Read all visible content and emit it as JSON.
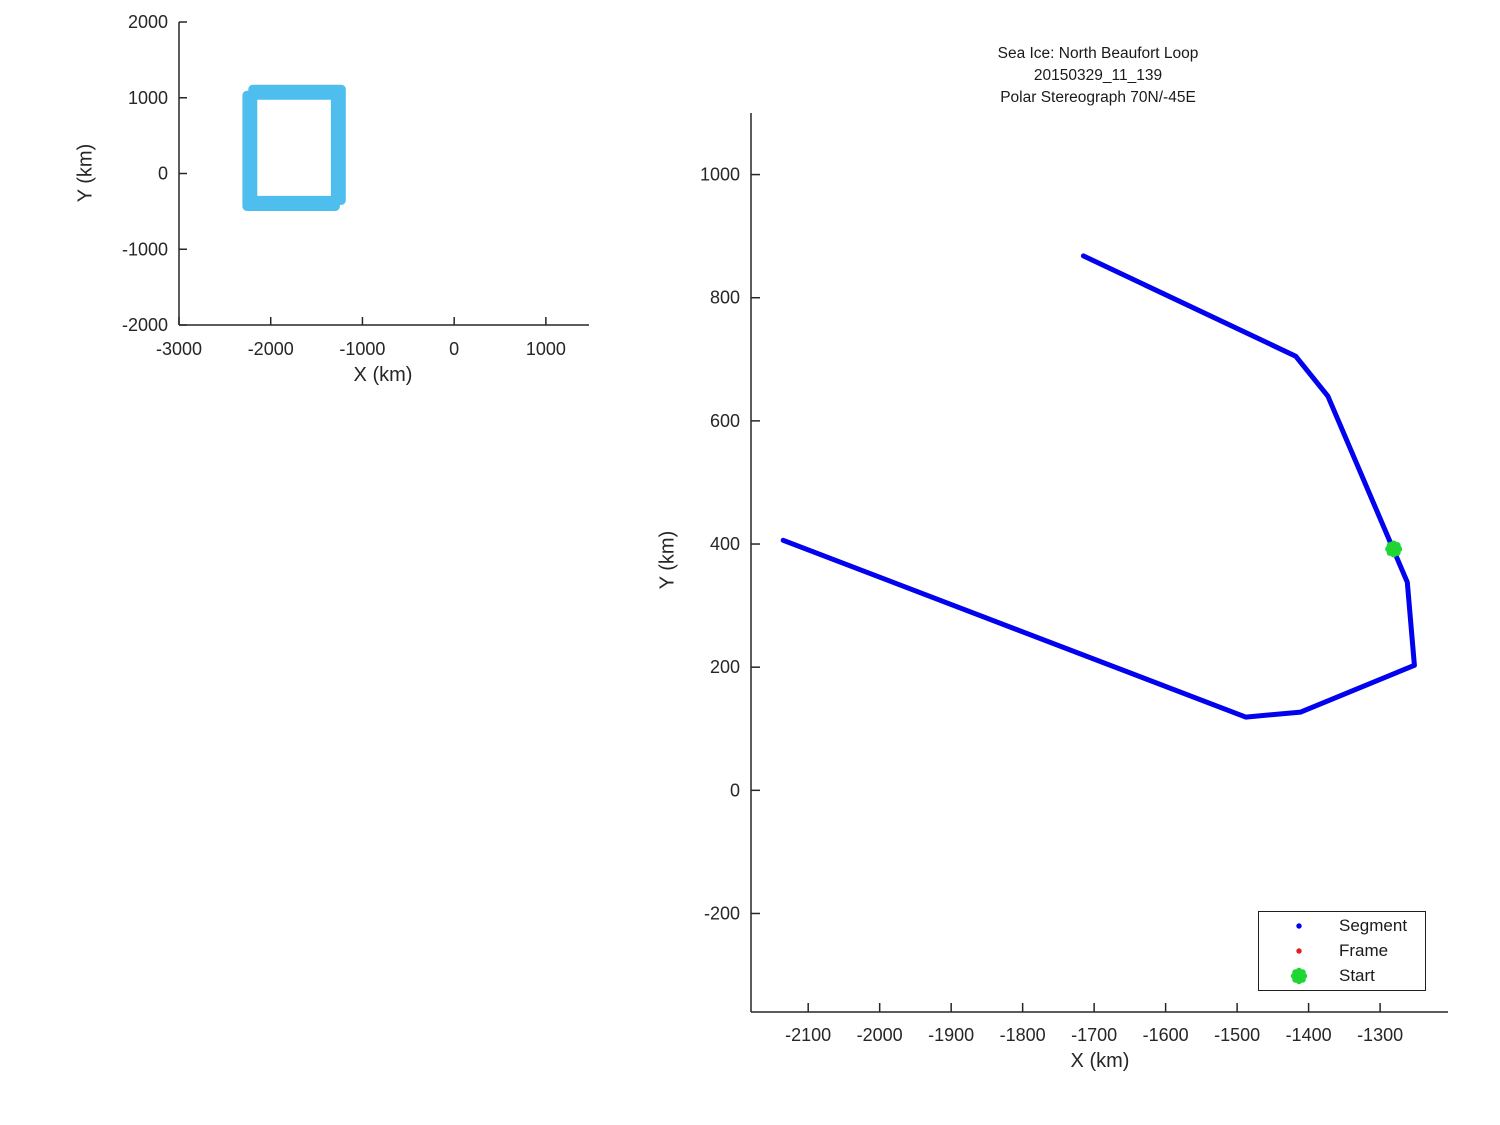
{
  "title": {
    "line1": "Sea Ice: North Beaufort Loop",
    "line2": "20150329_11_139",
    "line3": "Polar Stereograph 70N/-45E"
  },
  "colors": {
    "segment": "#0202EE",
    "frame": "#E02020",
    "start": "#1FD633",
    "footprint": "#4DBEEE",
    "axis": "#262626",
    "text": "#1A1A1A",
    "background": "#FFFFFF"
  },
  "chart_data": [
    {
      "id": "overview-map",
      "type": "line",
      "title": "",
      "xlabel": "X (km)",
      "ylabel": "Y (km)",
      "xlim": [
        -3000,
        1470
      ],
      "ylim": [
        -2000,
        2000
      ],
      "x_ticks": [
        -3000,
        -2000,
        -1000,
        0,
        1000
      ],
      "y_ticks": [
        -2000,
        -1000,
        0,
        1000,
        2000
      ],
      "grid": false,
      "legend_position": "none",
      "series": [
        {
          "name": "footprint-box-offset-pass",
          "color": "#4DBEEE",
          "line_width": 9,
          "closed": true,
          "points": [
            [
              -2260,
              1033
            ],
            [
              -1295,
              1033
            ],
            [
              -1295,
              -435
            ],
            [
              -2260,
              -435
            ]
          ]
        },
        {
          "name": "footprint-box",
          "color": "#4DBEEE",
          "line_width": 9,
          "closed": true,
          "points": [
            [
              -2195,
              1113
            ],
            [
              -1230,
              1113
            ],
            [
              -1230,
              -355
            ],
            [
              -2195,
              -355
            ]
          ]
        }
      ]
    },
    {
      "id": "trajectory",
      "type": "line",
      "title": "Sea Ice: North Beaufort Loop / 20150329_11_139 / Polar Stereograph 70N/-45E",
      "xlabel": "X (km)",
      "ylabel": "Y (km)",
      "xlim": [
        -2180,
        -1205
      ],
      "ylim": [
        -360,
        1100
      ],
      "x_ticks": [
        -2100,
        -2000,
        -1900,
        -1800,
        -1700,
        -1600,
        -1500,
        -1400,
        -1300
      ],
      "y_ticks": [
        -200,
        0,
        200,
        400,
        600,
        800,
        1000
      ],
      "grid": false,
      "legend_position": "southeast",
      "series": [
        {
          "name": "segment-track",
          "color": "#0202EE",
          "line_width": 5,
          "closed": false,
          "points": [
            [
              -1715,
              868
            ],
            [
              -1418,
              705
            ],
            [
              -1373,
              640
            ],
            [
              -1262,
              338
            ],
            [
              -1252,
              203
            ],
            [
              -1411,
              127
            ],
            [
              -1488,
              119
            ],
            [
              -2135,
              406
            ]
          ]
        }
      ],
      "start_marker": {
        "x": -1281,
        "y": 392,
        "color": "#1FD633"
      },
      "legend": {
        "entries": [
          {
            "label": "Segment",
            "marker": "dot",
            "color": "#0202EE"
          },
          {
            "label": "Frame",
            "marker": "dot",
            "color": "#E02020"
          },
          {
            "label": "Start",
            "marker": "burst",
            "color": "#1FD633"
          }
        ]
      }
    }
  ]
}
